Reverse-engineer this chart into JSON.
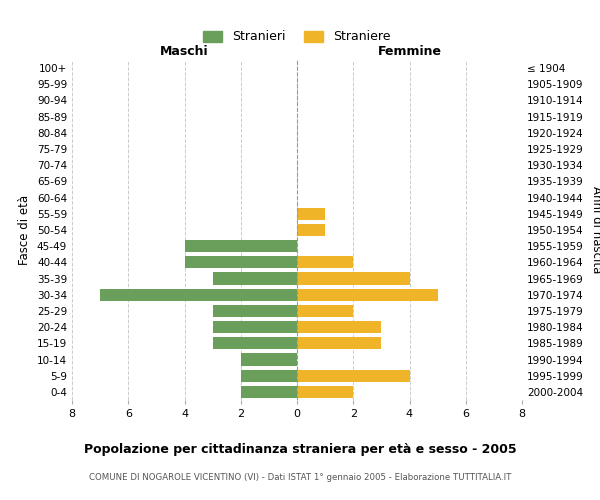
{
  "age_groups": [
    "0-4",
    "5-9",
    "10-14",
    "15-19",
    "20-24",
    "25-29",
    "30-34",
    "35-39",
    "40-44",
    "45-49",
    "50-54",
    "55-59",
    "60-64",
    "65-69",
    "70-74",
    "75-79",
    "80-84",
    "85-89",
    "90-94",
    "95-99",
    "100+"
  ],
  "birth_years": [
    "2000-2004",
    "1995-1999",
    "1990-1994",
    "1985-1989",
    "1980-1984",
    "1975-1979",
    "1970-1974",
    "1965-1969",
    "1960-1964",
    "1955-1959",
    "1950-1954",
    "1945-1949",
    "1940-1944",
    "1935-1939",
    "1930-1934",
    "1925-1929",
    "1920-1924",
    "1915-1919",
    "1910-1914",
    "1905-1909",
    "≤ 1904"
  ],
  "maschi": [
    2,
    2,
    2,
    3,
    3,
    3,
    7,
    3,
    4,
    4,
    0,
    0,
    0,
    0,
    0,
    0,
    0,
    0,
    0,
    0,
    0
  ],
  "femmine": [
    2,
    4,
    0,
    3,
    3,
    2,
    5,
    4,
    2,
    0,
    1,
    1,
    0,
    0,
    0,
    0,
    0,
    0,
    0,
    0,
    0
  ],
  "male_color": "#6a9e5b",
  "female_color": "#f0b429",
  "bg_color": "#ffffff",
  "grid_color": "#cccccc",
  "title": "Popolazione per cittadinanza straniera per età e sesso - 2005",
  "subtitle": "COMUNE DI NOGAROLE VICENTINO (VI) - Dati ISTAT 1° gennaio 2005 - Elaborazione TUTTITALIA.IT",
  "xlabel_left": "Maschi",
  "xlabel_right": "Femmine",
  "ylabel_left": "Fasce di età",
  "ylabel_right": "Anni di nascita",
  "xlim": 8,
  "legend_male": "Stranieri",
  "legend_female": "Straniere"
}
